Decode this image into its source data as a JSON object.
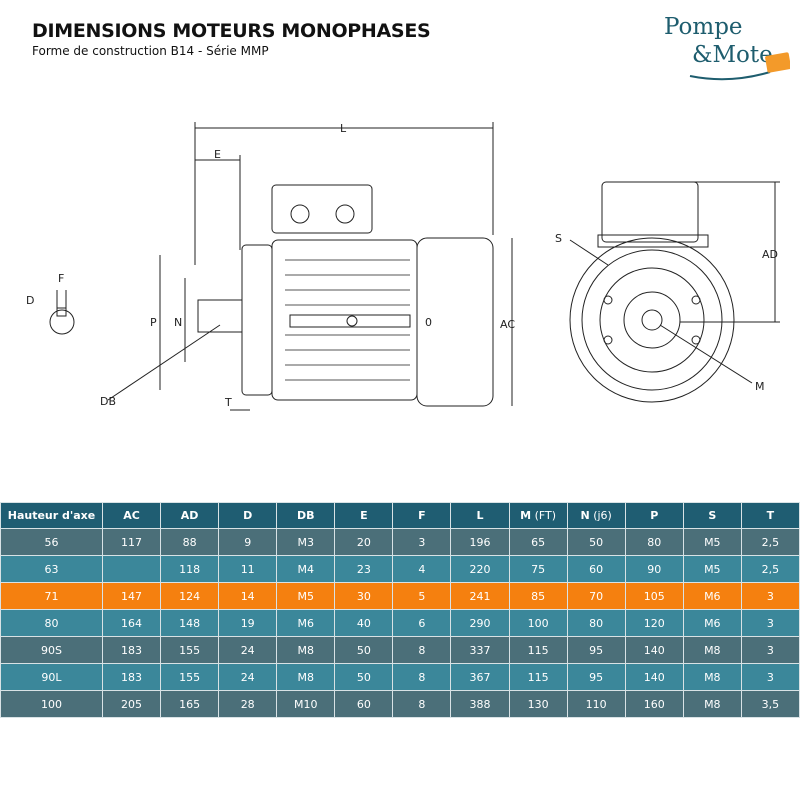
{
  "header": {
    "title": "DIMENSIONS MOTEURS MONOPHASES",
    "subtitle": "Forme de construction B14 -  Série MMP"
  },
  "logo": {
    "line1": "Pompe",
    "line2": "&Mote",
    "accent": "#f39a2a",
    "brand": "#1e5d6e"
  },
  "drawing": {
    "labels": {
      "L": "L",
      "E": "E",
      "F": "F",
      "D": "D",
      "P": "P",
      "N": "N",
      "DB": "DB",
      "T": "T",
      "AC": "AC",
      "AD": "AD",
      "S": "S",
      "M": "M",
      "zero": "0"
    }
  },
  "table": {
    "columns": [
      {
        "main": "Hauteur d'axe",
        "sub": ""
      },
      {
        "main": "AC",
        "sub": ""
      },
      {
        "main": "AD",
        "sub": ""
      },
      {
        "main": "D",
        "sub": ""
      },
      {
        "main": "DB",
        "sub": ""
      },
      {
        "main": "E",
        "sub": ""
      },
      {
        "main": "F",
        "sub": ""
      },
      {
        "main": "L",
        "sub": ""
      },
      {
        "main": "M",
        "sub": " (FT)"
      },
      {
        "main": "N",
        "sub": " (j6)"
      },
      {
        "main": "P",
        "sub": ""
      },
      {
        "main": "S",
        "sub": ""
      },
      {
        "main": "T",
        "sub": ""
      }
    ],
    "highlight_color": "#f5800f",
    "rows": [
      [
        "56",
        "117",
        "88",
        "9",
        "M3",
        "20",
        "3",
        "196",
        "65",
        "50",
        "80",
        "M5",
        "2,5"
      ],
      [
        "63",
        "",
        "118",
        "11",
        "M4",
        "23",
        "4",
        "220",
        "75",
        "60",
        "90",
        "M5",
        "2,5"
      ],
      [
        "71",
        "147",
        "124",
        "14",
        "M5",
        "30",
        "5",
        "241",
        "85",
        "70",
        "105",
        "M6",
        "3"
      ],
      [
        "80",
        "164",
        "148",
        "19",
        "M6",
        "40",
        "6",
        "290",
        "100",
        "80",
        "120",
        "M6",
        "3"
      ],
      [
        "90S",
        "183",
        "155",
        "24",
        "M8",
        "50",
        "8",
        "337",
        "115",
        "95",
        "140",
        "M8",
        "3"
      ],
      [
        "90L",
        "183",
        "155",
        "24",
        "M8",
        "50",
        "8",
        "367",
        "115",
        "95",
        "140",
        "M8",
        "3"
      ],
      [
        "100",
        "205",
        "165",
        "28",
        "M10",
        "60",
        "8",
        "388",
        "130",
        "110",
        "160",
        "M8",
        "3,5"
      ]
    ],
    "highlighted_row": 2
  }
}
